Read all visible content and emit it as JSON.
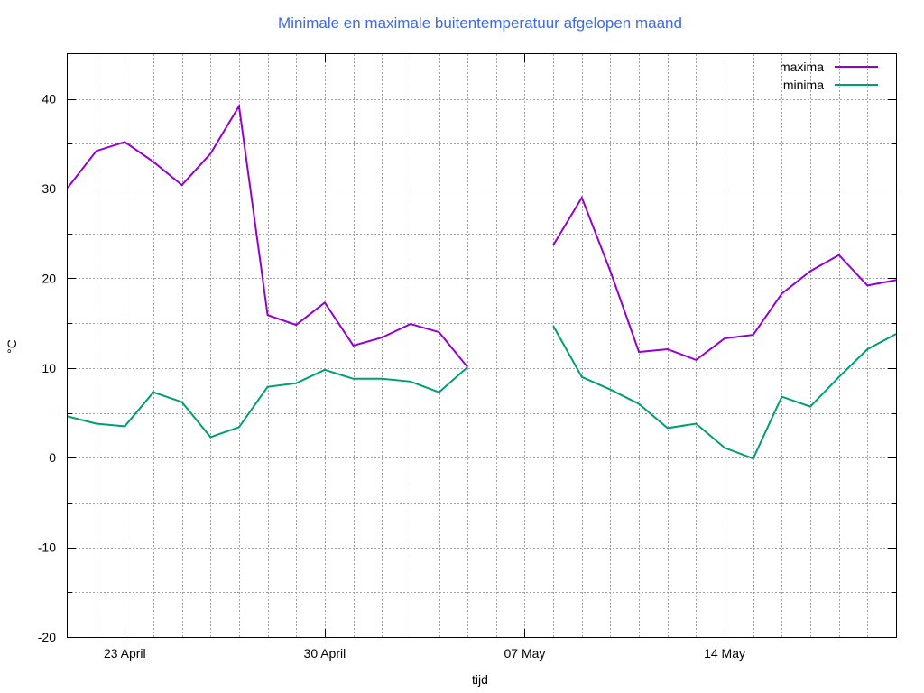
{
  "chart_data": {
    "type": "line",
    "title": "Minimale en maximale buitentemperatuur afgelopen maand",
    "xlabel": "tijd",
    "ylabel": "°C",
    "ylim": [
      -20,
      45
    ],
    "y_ticks": [
      -20,
      -10,
      0,
      10,
      20,
      30,
      40
    ],
    "x_ticks": [
      {
        "day": 23,
        "label": "23 April"
      },
      {
        "day": 30,
        "label": "30 April"
      },
      {
        "day": 37,
        "label": "07 May"
      },
      {
        "day": 44,
        "label": "14 May"
      }
    ],
    "x_range": [
      21,
      50
    ],
    "x_day_origin": "April 21",
    "grid": true,
    "legend_position": "top-right",
    "series": [
      {
        "name": "maxima",
        "color": "#9400d3",
        "points": [
          [
            21,
            30.1
          ],
          [
            22,
            34.2
          ],
          [
            23,
            35.2
          ],
          [
            24,
            33.0
          ],
          [
            25,
            30.4
          ],
          [
            26,
            33.9
          ],
          [
            27,
            39.2
          ],
          [
            28,
            15.9
          ],
          [
            29,
            14.8
          ],
          [
            30,
            17.3
          ],
          [
            31,
            12.5
          ],
          [
            32,
            13.4
          ],
          [
            33,
            14.9
          ],
          [
            34,
            14.0
          ],
          [
            35,
            10.1
          ],
          null,
          [
            38,
            23.7
          ],
          [
            39,
            29.0
          ],
          [
            40,
            20.8
          ],
          [
            41,
            11.8
          ],
          [
            42,
            12.1
          ],
          [
            43,
            10.9
          ],
          [
            44,
            13.3
          ],
          [
            45,
            13.7
          ],
          [
            46,
            18.3
          ],
          [
            47,
            20.8
          ],
          [
            48,
            22.6
          ],
          [
            49,
            19.2
          ],
          [
            50,
            19.8
          ]
        ]
      },
      {
        "name": "minima",
        "color": "#009e73",
        "points": [
          [
            21,
            4.6
          ],
          [
            22,
            3.8
          ],
          [
            23,
            3.5
          ],
          [
            24,
            7.3
          ],
          [
            25,
            6.2
          ],
          [
            26,
            2.3
          ],
          [
            27,
            3.4
          ],
          [
            28,
            7.9
          ],
          [
            29,
            8.3
          ],
          [
            30,
            9.8
          ],
          [
            31,
            8.8
          ],
          [
            32,
            8.8
          ],
          [
            33,
            8.5
          ],
          [
            34,
            7.3
          ],
          [
            35,
            10.1
          ],
          null,
          [
            38,
            14.7
          ],
          [
            39,
            9.0
          ],
          [
            40,
            7.6
          ],
          [
            41,
            6.0
          ],
          [
            42,
            3.3
          ],
          [
            43,
            3.8
          ],
          [
            44,
            1.1
          ],
          [
            45,
            -0.1
          ],
          [
            46,
            6.8
          ],
          [
            47,
            5.7
          ],
          [
            48,
            9.0
          ],
          [
            49,
            12.1
          ],
          [
            50,
            13.8
          ]
        ]
      }
    ]
  }
}
